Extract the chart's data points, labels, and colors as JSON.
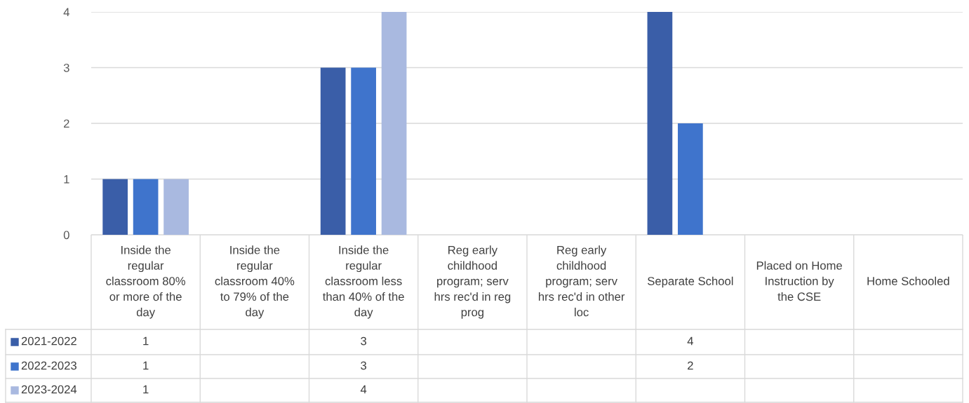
{
  "chart_data": {
    "type": "bar",
    "categories": [
      "Inside the regular classroom 80% or more of the day",
      "Inside the regular classroom 40% to 79% of the day",
      "Inside the regular classroom less than 40% of the day",
      "Reg early childhood program; serv hrs rec'd in reg prog",
      "Reg early childhood program; serv hrs rec'd in other loc",
      "Separate School",
      "Placed on Home Instruction by the CSE",
      "Home Schooled"
    ],
    "series": [
      {
        "name": "2021-2022",
        "color": "#3a5ea8",
        "values": [
          1,
          null,
          3,
          null,
          null,
          4,
          null,
          null
        ]
      },
      {
        "name": "2022-2023",
        "color": "#3f74cc",
        "values": [
          1,
          null,
          3,
          null,
          null,
          2,
          null,
          null
        ]
      },
      {
        "name": "2023-2024",
        "color": "#a9b9e0",
        "values": [
          1,
          null,
          4,
          null,
          null,
          null,
          null,
          null
        ]
      }
    ],
    "ylim": [
      0,
      4
    ],
    "yticks": [
      0,
      1,
      2,
      3,
      4
    ],
    "grid": "y",
    "legend": "bottom left",
    "data_labels": true
  }
}
